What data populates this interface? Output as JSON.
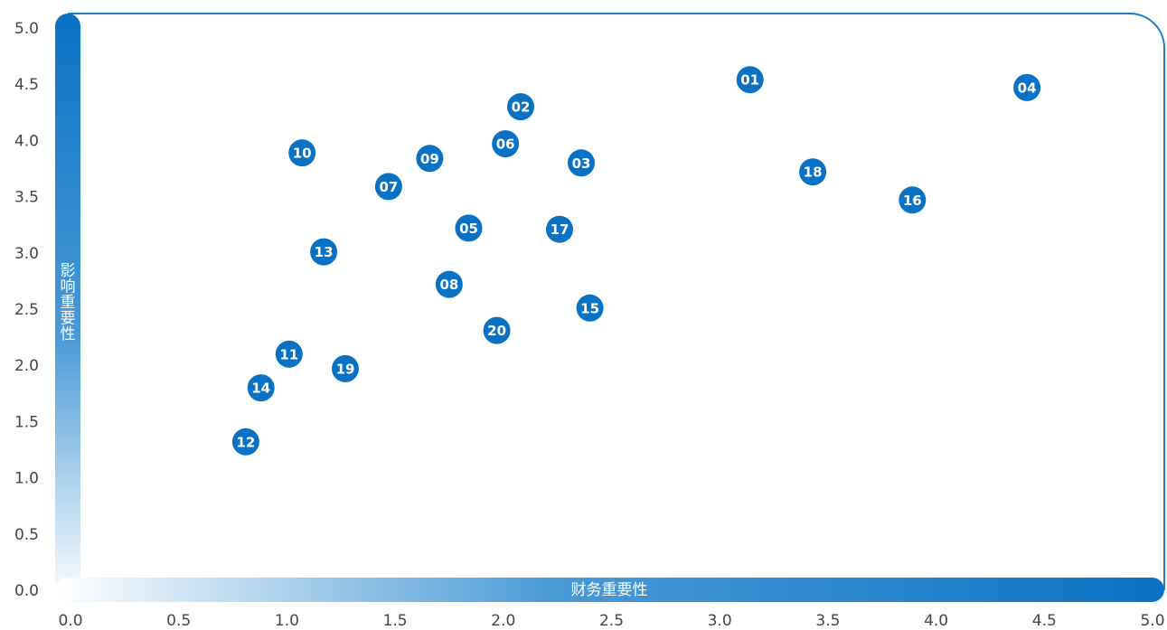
{
  "chart_data": {
    "type": "scatter",
    "xlabel": "财务重要性",
    "ylabel": "影响重要性",
    "xlim": [
      0,
      5
    ],
    "ylim": [
      0,
      5
    ],
    "x_ticks": [
      "0.0",
      "0.5",
      "1.0",
      "1.5",
      "2.0",
      "2.5",
      "3.0",
      "3.5",
      "4.0",
      "4.5",
      "5.0"
    ],
    "y_ticks": [
      "0.0",
      "0.5",
      "1.0",
      "1.5",
      "2.0",
      "2.5",
      "3.0",
      "3.5",
      "4.0",
      "4.5",
      "5.0"
    ],
    "grid": false,
    "legend": "none",
    "colors": {
      "point": "#0a72c4",
      "frame": "#1a7fcc",
      "axis_bar": "#0a72c4"
    },
    "points": [
      {
        "label": "01",
        "x": 3.14,
        "y": 4.54
      },
      {
        "label": "02",
        "x": 2.08,
        "y": 4.3
      },
      {
        "label": "03",
        "x": 2.36,
        "y": 3.8
      },
      {
        "label": "04",
        "x": 4.42,
        "y": 4.47
      },
      {
        "label": "05",
        "x": 1.84,
        "y": 3.22
      },
      {
        "label": "06",
        "x": 2.01,
        "y": 3.97
      },
      {
        "label": "07",
        "x": 1.47,
        "y": 3.59
      },
      {
        "label": "08",
        "x": 1.75,
        "y": 2.72
      },
      {
        "label": "09",
        "x": 1.66,
        "y": 3.84
      },
      {
        "label": "10",
        "x": 1.07,
        "y": 3.89
      },
      {
        "label": "11",
        "x": 1.01,
        "y": 2.1
      },
      {
        "label": "12",
        "x": 0.81,
        "y": 1.32
      },
      {
        "label": "13",
        "x": 1.17,
        "y": 3.01
      },
      {
        "label": "14",
        "x": 0.88,
        "y": 1.8
      },
      {
        "label": "15",
        "x": 2.4,
        "y": 2.51
      },
      {
        "label": "16",
        "x": 3.89,
        "y": 3.47
      },
      {
        "label": "17",
        "x": 2.26,
        "y": 3.21
      },
      {
        "label": "18",
        "x": 3.43,
        "y": 3.72
      },
      {
        "label": "19",
        "x": 1.27,
        "y": 1.97
      },
      {
        "label": "20",
        "x": 1.97,
        "y": 2.31
      }
    ]
  }
}
